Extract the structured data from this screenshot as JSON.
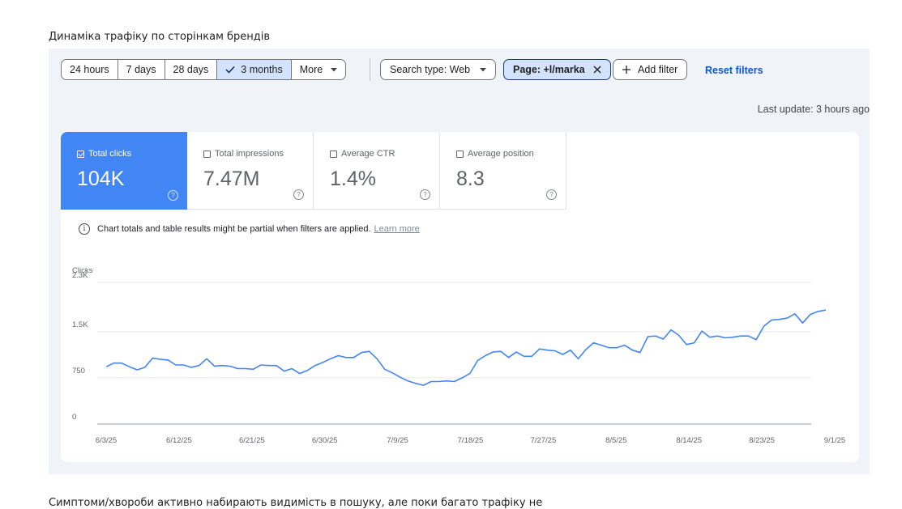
{
  "document": {
    "heading": "Динаміка трафіку по сторінкам брендів",
    "footer_text": "Симптоми/хвороби активно набирають видимість в пошуку, але поки багато трафіку не"
  },
  "toolbar": {
    "date_ranges": [
      "24 hours",
      "7 days",
      "28 days",
      "3 months"
    ],
    "selected_range": "3 months",
    "more_label": "More",
    "search_type_label": "Search type: Web",
    "page_filter_label": "Page: +l/marka",
    "add_filter_label": "Add filter",
    "reset_label": "Reset filters",
    "last_update": "Last update: 3 hours ago"
  },
  "metrics": [
    {
      "label": "Total clicks",
      "value": "104K",
      "selected": true
    },
    {
      "label": "Total impressions",
      "value": "7.47M",
      "selected": false
    },
    {
      "label": "Average CTR",
      "value": "1.4%",
      "selected": false
    },
    {
      "label": "Average position",
      "value": "8.3",
      "selected": false
    }
  ],
  "notice": {
    "text": "Chart totals and table results might be partial when filters are applied.",
    "link": "Learn more"
  },
  "colors": {
    "accent": "#4285f4",
    "line": "#4285f4",
    "link": "#0b57d0"
  },
  "icons": [
    "check-icon",
    "chevron-down-icon",
    "close-icon",
    "plus-icon",
    "info-icon",
    "help-icon"
  ],
  "chart_data": {
    "type": "line",
    "ylabel": "Clicks",
    "yticks": [
      0,
      750,
      1500,
      2300
    ],
    "ytick_labels": [
      "0",
      "750",
      "1.5K",
      "2.3K"
    ],
    "ylim": [
      0,
      2300
    ],
    "xtick_labels": [
      "6/3/25",
      "6/12/25",
      "6/21/25",
      "6/30/25",
      "7/9/25",
      "7/18/25",
      "7/27/25",
      "8/5/25",
      "8/14/25",
      "8/23/25",
      "9/1/25"
    ],
    "x_start": "6/3/25",
    "x_end": "9/1/25",
    "grid": true,
    "series": [
      {
        "values": [
          930,
          990,
          990,
          930,
          880,
          920,
          1070,
          1050,
          1040,
          960,
          960,
          920,
          950,
          1060,
          940,
          950,
          940,
          900,
          900,
          890,
          960,
          950,
          950,
          860,
          900,
          820,
          870,
          950,
          1000,
          1060,
          1110,
          1080,
          1080,
          1160,
          1180,
          1060,
          890,
          830,
          760,
          700,
          660,
          630,
          690,
          690,
          700,
          690,
          750,
          820,
          1030,
          1110,
          1170,
          1180,
          1080,
          1170,
          1100,
          1100,
          1220,
          1200,
          1190,
          1130,
          1200,
          1060,
          1210,
          1320,
          1280,
          1240,
          1240,
          1280,
          1200,
          1160,
          1420,
          1430,
          1380,
          1530,
          1440,
          1290,
          1320,
          1510,
          1410,
          1430,
          1400,
          1410,
          1430,
          1430,
          1370,
          1590,
          1690,
          1700,
          1720,
          1790,
          1640,
          1780,
          1830,
          1850
        ]
      }
    ]
  }
}
